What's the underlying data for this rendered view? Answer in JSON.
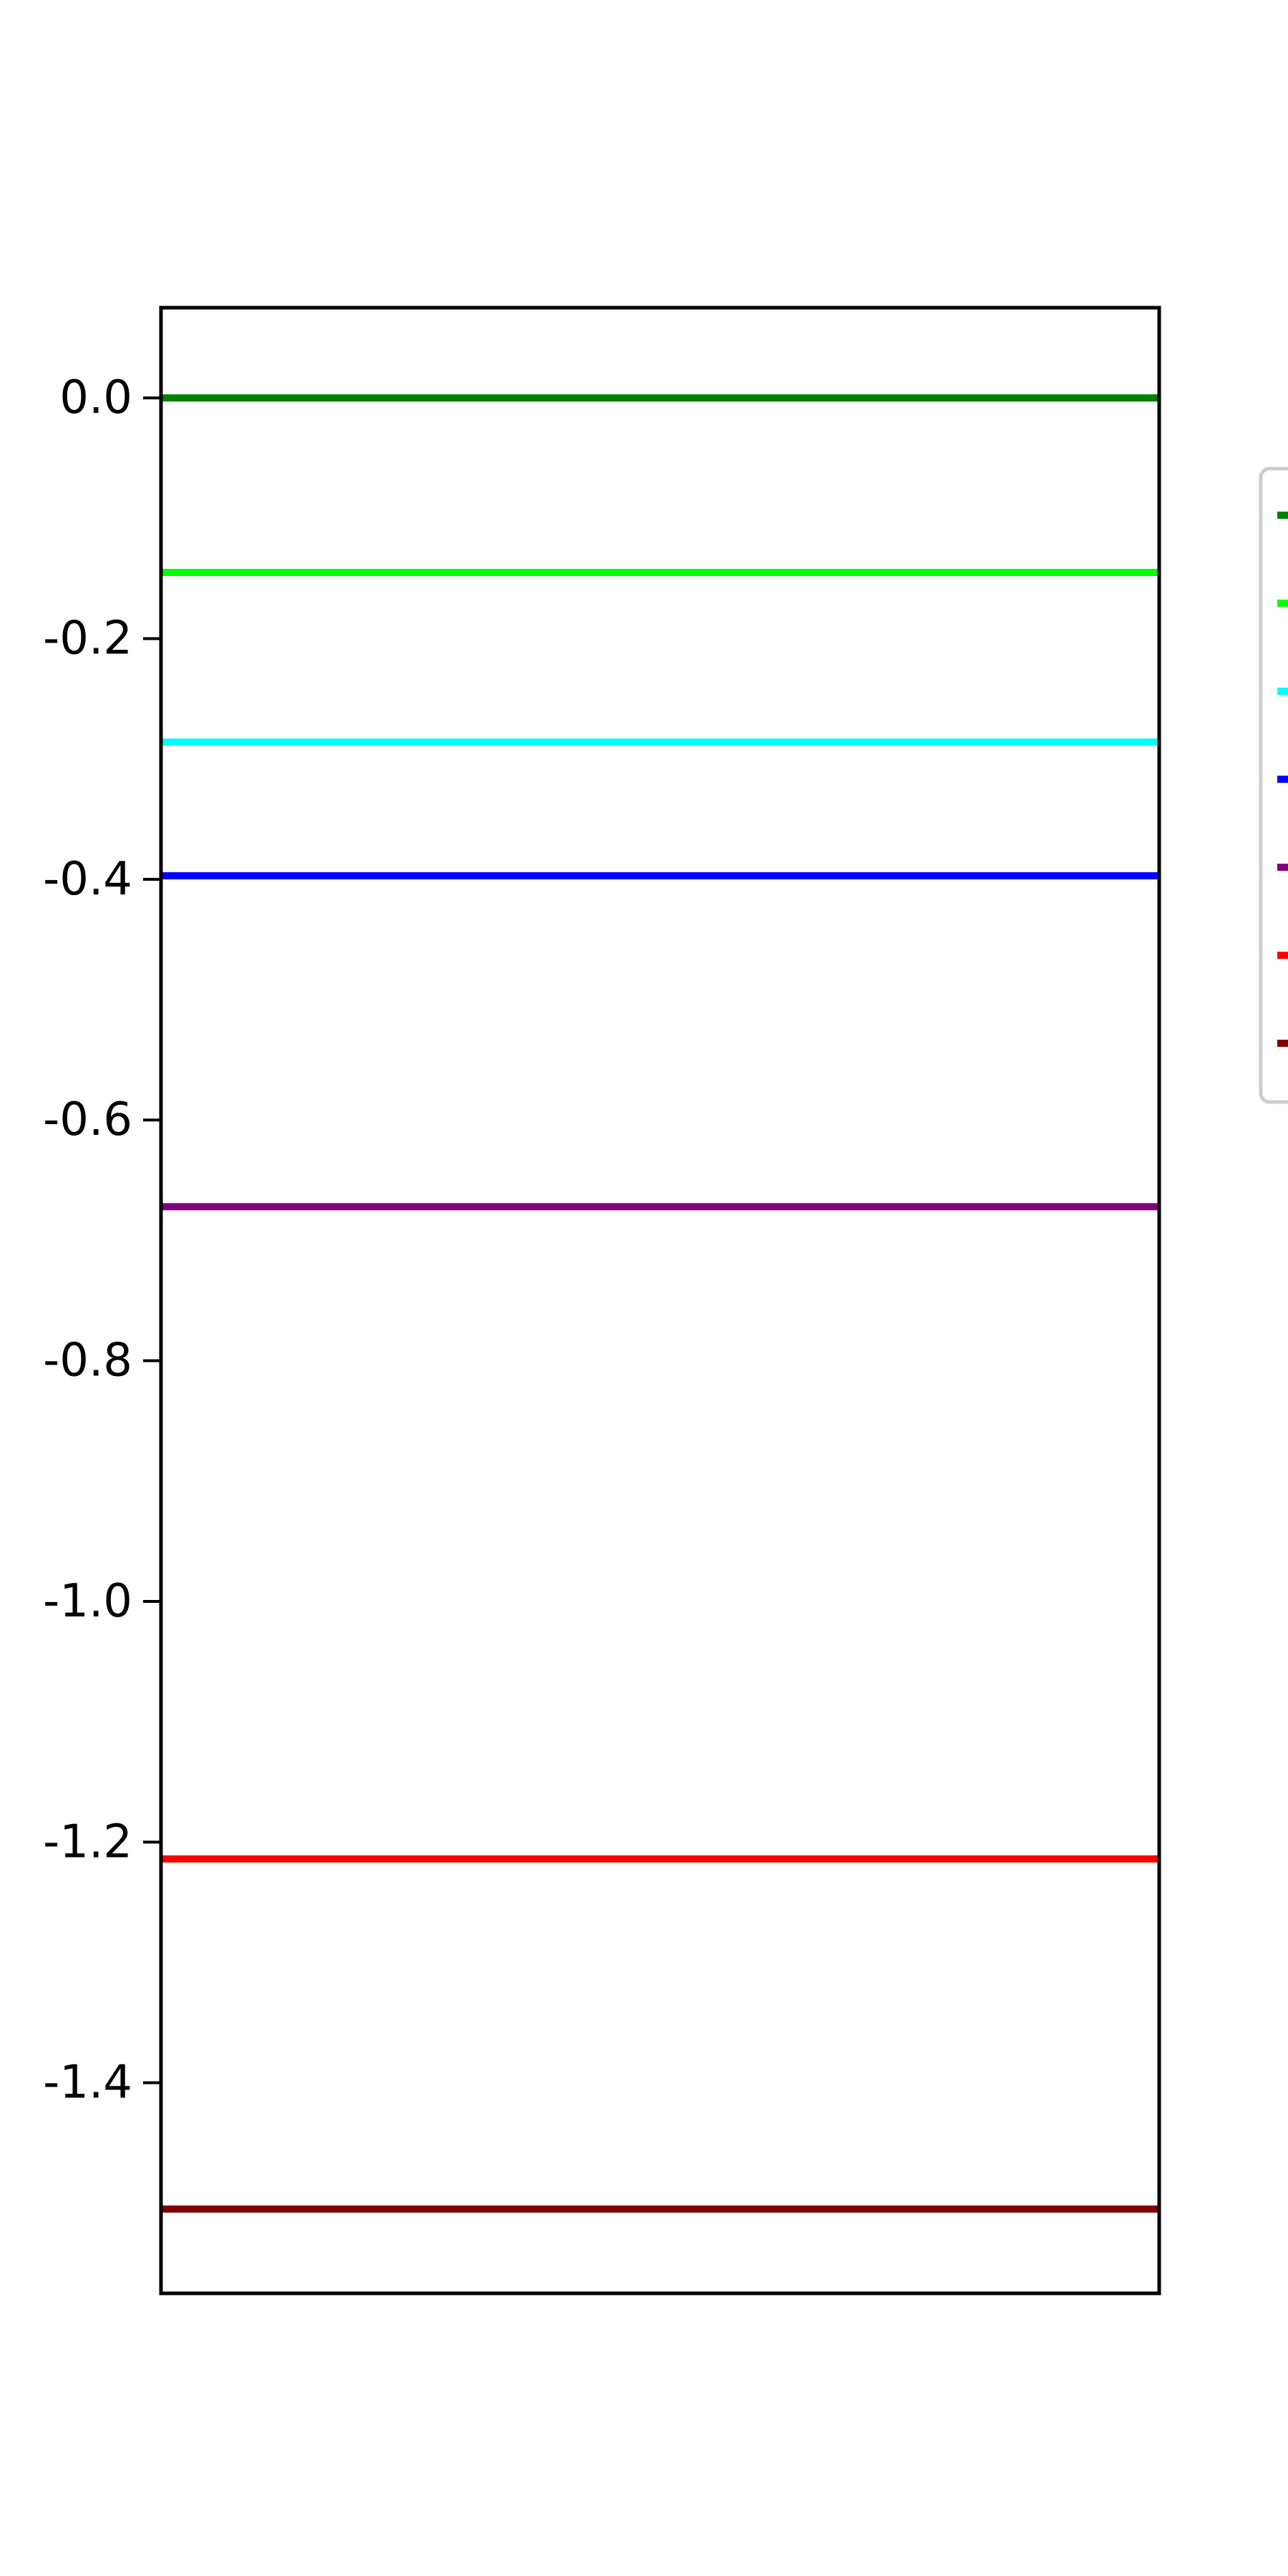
{
  "chart_data": {
    "type": "line",
    "title": "",
    "xlabel": "",
    "ylabel": "",
    "ylim": [
      -1.575,
      0.075
    ],
    "yticks": [
      "0.0",
      "-0.2",
      "-0.4",
      "-0.6",
      "-0.8",
      "-1.0",
      "-1.2",
      "-1.4"
    ],
    "ytick_values": [
      0.0,
      -0.2,
      -0.4,
      -0.6,
      -0.8,
      -1.0,
      -1.2,
      -1.4
    ],
    "grid": false,
    "legend": {
      "placement": "right, outside axes (clipped)",
      "entries_visible_text": false
    },
    "series": [
      {
        "color": "#008000",
        "y": 0.0
      },
      {
        "color": "#00ff00",
        "y": -0.145
      },
      {
        "color": "#00ffff",
        "y": -0.286
      },
      {
        "color": "#0000ff",
        "y": -0.397
      },
      {
        "color": "#800080",
        "y": -0.672
      },
      {
        "color": "#ff0000",
        "y": -1.214
      },
      {
        "color": "#800000",
        "y": -1.505
      }
    ]
  }
}
